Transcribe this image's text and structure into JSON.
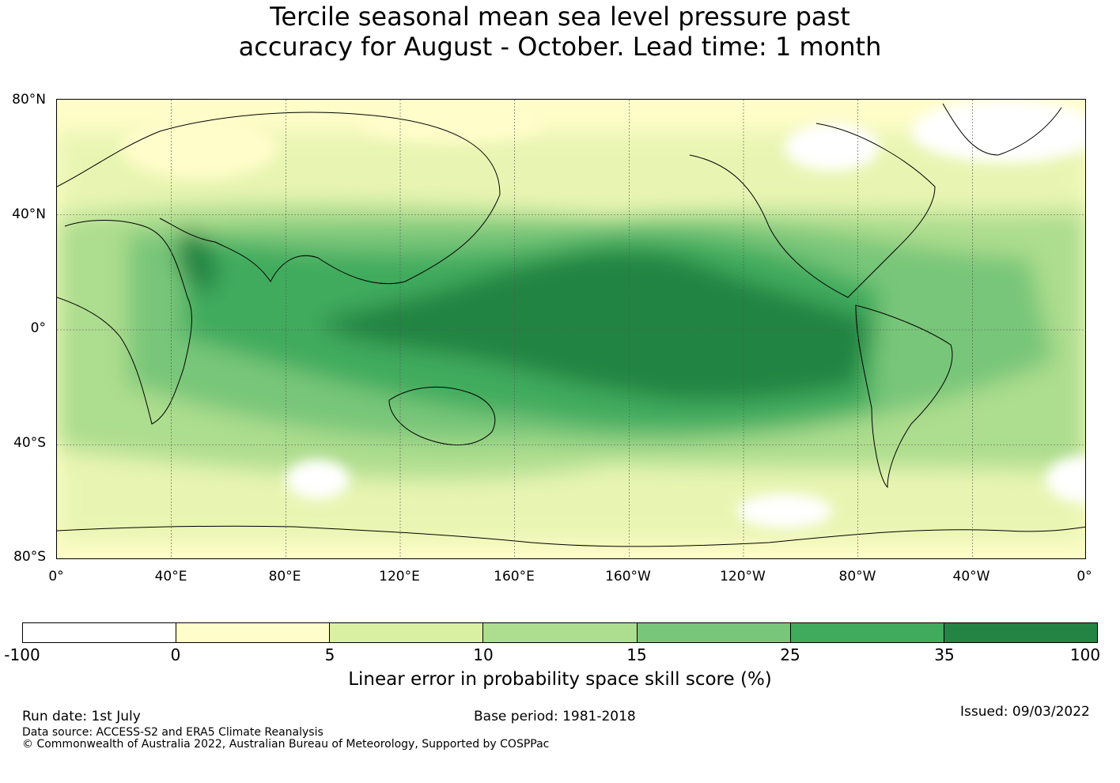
{
  "title_line1": "Tercile seasonal mean sea level pressure past",
  "title_line2": "accuracy for August - October. Lead time: 1 month",
  "map": {
    "lat_labels": [
      "80°N",
      "40°N",
      "0°",
      "40°S",
      "80°S"
    ],
    "lon_labels": [
      "0°",
      "40°E",
      "80°E",
      "120°E",
      "160°E",
      "160°W",
      "120°W",
      "80°W",
      "40°W",
      "0°"
    ],
    "lat_range": [
      -80,
      80
    ],
    "lon_range": [
      0,
      360
    ],
    "grid": true
  },
  "legend": {
    "ticks": [
      "-100",
      "0",
      "5",
      "10",
      "15",
      "25",
      "35",
      "100"
    ],
    "colors": [
      "#ffffff",
      "#fffdc9",
      "#d9f0a3",
      "#addd8e",
      "#78c679",
      "#41ab5d",
      "#238443"
    ],
    "label": "Linear error in probability space skill score (%)"
  },
  "footer": {
    "run_date": "Run date: 1st July",
    "base_period": "Base period: 1981-2018",
    "issued": "Issued: 09/03/2022",
    "data_source": "Data source: ACCESS-S2 and ERA5 Climate Reanalysis",
    "copyright": "© Commonwealth of Australia 2022, Australian Bureau of Meteorology, Supported by COSPPac"
  }
}
